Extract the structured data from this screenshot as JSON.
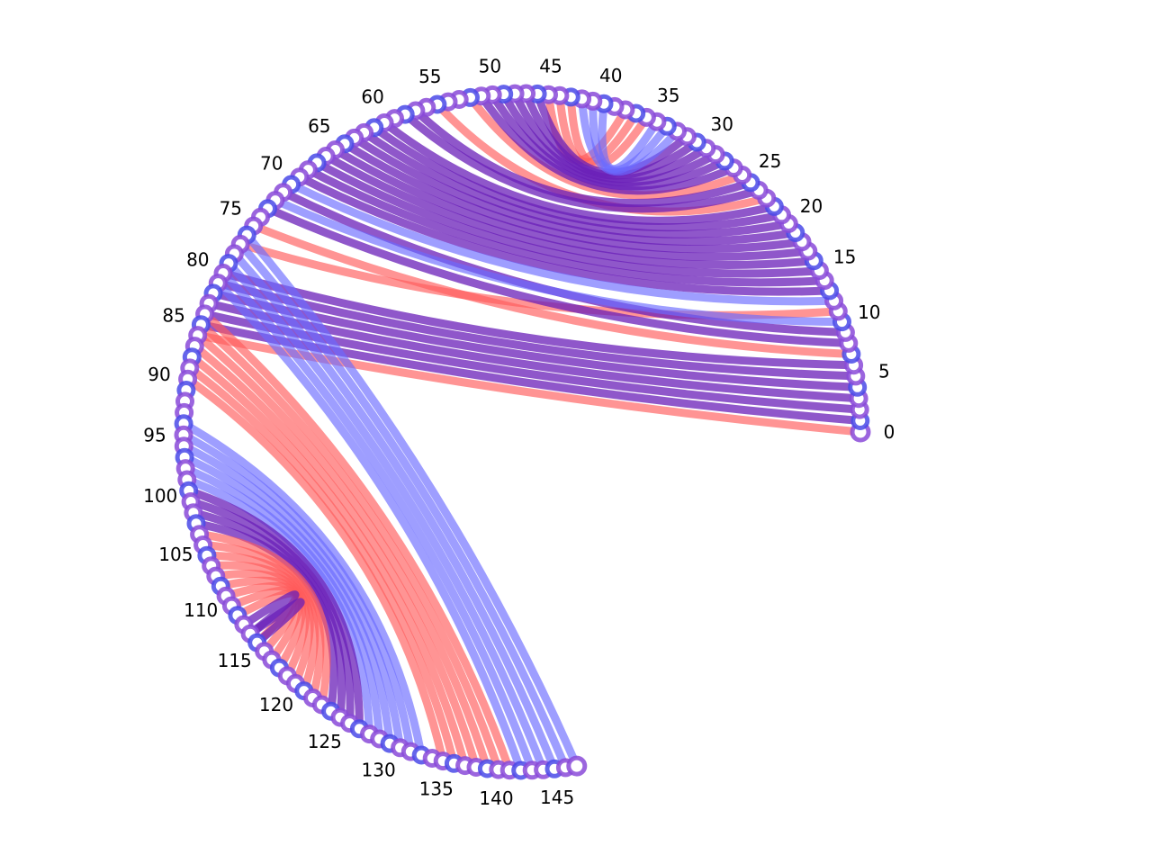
{
  "chart_data": {
    "type": "chord",
    "node_count": 148,
    "tick_labels": [
      "0",
      "5",
      "10",
      "15",
      "20",
      "25",
      "30",
      "35",
      "40",
      "45",
      "50",
      "55",
      "60",
      "65",
      "70",
      "75",
      "80",
      "85",
      "90",
      "95",
      "100",
      "105",
      "110",
      "115",
      "120",
      "125",
      "130",
      "135",
      "140",
      "145"
    ],
    "colors": {
      "red": "#ff5a5a",
      "blue": "#6a6aff",
      "purple": "#6a1fb8",
      "node_purple": "#8a4ad8",
      "node_blue": "#4a4ae8",
      "node_red": "#ff4a6a"
    },
    "series": [
      {
        "name": "",
        "color_key": "red",
        "links": [
          [
            0,
            86
          ],
          [
            7,
            75
          ],
          [
            11,
            77
          ],
          [
            23,
            55
          ],
          [
            26,
            52
          ],
          [
            36,
            43
          ],
          [
            37,
            44
          ],
          [
            38,
            45
          ]
        ]
      },
      {
        "name": "",
        "color_key": "purple",
        "links": [
          [
            1,
            85
          ],
          [
            2,
            84
          ],
          [
            3,
            83
          ],
          [
            4,
            82
          ],
          [
            5,
            81
          ],
          [
            6,
            80
          ],
          [
            8,
            73
          ],
          [
            9,
            71
          ],
          [
            13,
            69
          ],
          [
            14,
            68
          ],
          [
            15,
            67
          ],
          [
            16,
            66
          ],
          [
            17,
            65
          ],
          [
            18,
            64
          ],
          [
            19,
            63
          ],
          [
            20,
            62
          ],
          [
            21,
            61
          ],
          [
            22,
            60
          ],
          [
            24,
            58
          ],
          [
            25,
            57
          ],
          [
            27,
            51
          ],
          [
            28,
            50
          ],
          [
            29,
            49
          ],
          [
            30,
            48
          ],
          [
            31,
            47
          ],
          [
            32,
            46
          ]
        ]
      },
      {
        "name": "",
        "color_key": "blue",
        "links": [
          [
            10,
            72
          ],
          [
            12,
            70
          ],
          [
            33,
            42
          ],
          [
            34,
            41
          ],
          [
            35,
            40
          ]
        ]
      },
      {
        "name": "",
        "color_key": "blue",
        "links": [
          [
            76,
            147
          ],
          [
            77,
            146
          ],
          [
            78,
            145
          ],
          [
            79,
            144
          ],
          [
            80,
            143
          ],
          [
            81,
            142
          ]
        ]
      },
      {
        "name": "",
        "color_key": "red",
        "links": [
          [
            84,
            141
          ],
          [
            85,
            140
          ],
          [
            86,
            139
          ],
          [
            87,
            138
          ],
          [
            88,
            137
          ],
          [
            89,
            136
          ],
          [
            90,
            135
          ]
        ]
      },
      {
        "name": "",
        "color_key": "blue",
        "links": [
          [
            94,
            133
          ],
          [
            95,
            132
          ],
          [
            96,
            131
          ],
          [
            97,
            130
          ],
          [
            98,
            129
          ],
          [
            99,
            128
          ]
        ]
      },
      {
        "name": "",
        "color_key": "purple",
        "links": [
          [
            100,
            127
          ],
          [
            101,
            126
          ],
          [
            102,
            125
          ],
          [
            103,
            124
          ]
        ]
      },
      {
        "name": "",
        "color_key": "red",
        "links": [
          [
            104,
            123
          ],
          [
            105,
            122
          ],
          [
            106,
            121
          ],
          [
            107,
            120
          ],
          [
            108,
            119
          ],
          [
            109,
            118
          ],
          [
            110,
            117
          ],
          [
            111,
            116
          ],
          [
            112,
            115
          ]
        ]
      },
      {
        "name": "",
        "color_key": "purple",
        "links": [
          [
            113,
            114
          ],
          [
            114,
            115
          ]
        ]
      }
    ]
  }
}
